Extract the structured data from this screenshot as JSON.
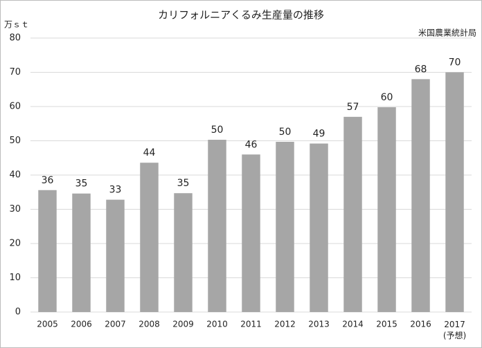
{
  "chart_data": {
    "type": "bar",
    "title": "カリフォルニアくるみ生産量の推移",
    "y_label": "万ｓｔ",
    "source": "米国農業統計局",
    "categories": [
      "2005",
      "2006",
      "2007",
      "2008",
      "2009",
      "2010",
      "2011",
      "2012",
      "2013",
      "2014",
      "2015",
      "2016",
      "2017\n(予想)"
    ],
    "values": [
      35.6,
      34.6,
      32.8,
      43.6,
      34.7,
      50.3,
      46,
      49.7,
      49.2,
      57,
      59.8,
      68,
      70
    ],
    "value_labels": [
      "36",
      "35",
      "33",
      "44",
      "35",
      "50",
      "46",
      "50",
      "49",
      "57",
      "60",
      "68",
      "70"
    ],
    "color": "#a6a6a6",
    "ylim": [
      0,
      80
    ],
    "yticks": [
      0,
      10,
      20,
      30,
      40,
      50,
      60,
      70,
      80
    ],
    "grid": true
  }
}
